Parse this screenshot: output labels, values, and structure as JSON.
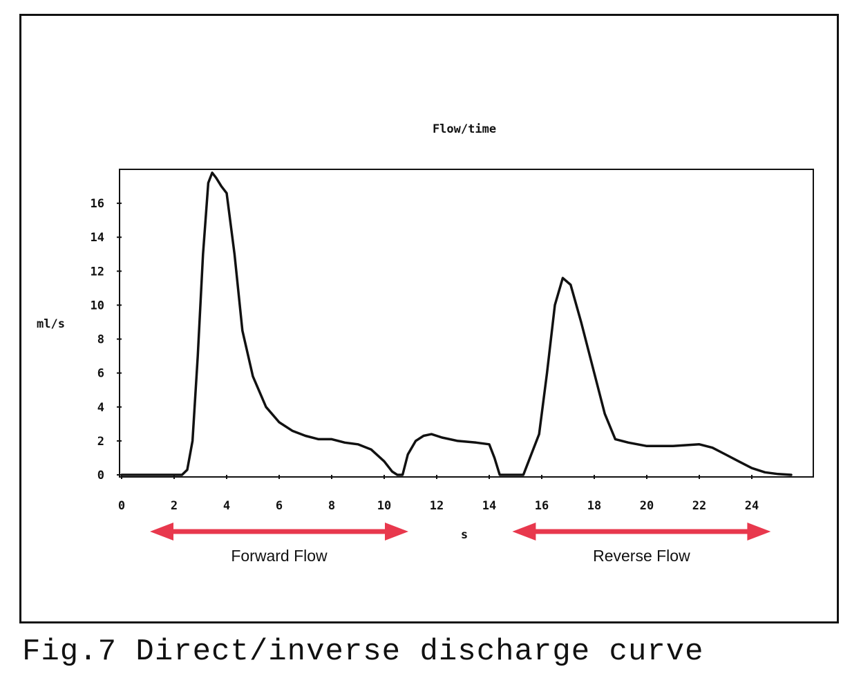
{
  "figure": {
    "caption": "Fig.7 Direct/inverse discharge curve"
  },
  "chart_data": {
    "type": "line",
    "title": "Flow/time",
    "xlabel": "s",
    "ylabel": "ml/s",
    "xlim": [
      0,
      26
    ],
    "ylim": [
      0,
      18
    ],
    "xticks": [
      0,
      2,
      4,
      6,
      8,
      10,
      12,
      14,
      16,
      18,
      20,
      22,
      24
    ],
    "yticks": [
      0,
      2,
      4,
      6,
      8,
      10,
      12,
      14,
      16
    ],
    "grid": false,
    "colors": {
      "line": "#111111",
      "arrow": "#e8384d"
    },
    "series": [
      {
        "x": [
          0,
          1,
          2,
          2.3,
          2.5,
          2.7,
          2.9,
          3.1,
          3.3,
          3.45,
          3.6,
          3.8,
          4.0,
          4.3,
          4.6,
          5.0,
          5.5,
          6.0,
          6.5,
          7.0,
          7.5,
          8.0,
          8.5,
          9.0,
          9.5,
          10.0,
          10.3,
          10.5,
          10.7,
          10.9,
          11.2,
          11.5,
          11.8,
          12.2,
          12.8,
          13.5,
          14.0,
          14.2,
          14.4,
          14.6,
          15.0,
          15.3,
          15.6,
          15.9,
          16.2,
          16.5,
          16.8,
          17.1,
          17.5,
          18.0,
          18.4,
          18.8,
          19.3,
          20.0,
          21.0,
          22.0,
          22.5,
          23.0,
          23.5,
          24.0,
          24.5,
          25.0,
          25.5
        ],
        "y": [
          0,
          0,
          0,
          0,
          0.3,
          2.0,
          7.0,
          13.0,
          17.2,
          17.8,
          17.5,
          17.0,
          16.6,
          13.0,
          8.5,
          5.8,
          4.0,
          3.1,
          2.6,
          2.3,
          2.1,
          2.1,
          1.9,
          1.8,
          1.5,
          0.8,
          0.2,
          0,
          0,
          1.2,
          2.0,
          2.3,
          2.4,
          2.2,
          2.0,
          1.9,
          1.8,
          1.0,
          0,
          0,
          0,
          0,
          1.2,
          2.4,
          6.0,
          10.0,
          11.6,
          11.2,
          9.0,
          6.0,
          3.6,
          2.1,
          1.9,
          1.7,
          1.7,
          1.8,
          1.6,
          1.2,
          0.8,
          0.4,
          0.15,
          0.05,
          0
        ]
      }
    ],
    "annotations": [
      {
        "label": "Forward Flow",
        "x_from": 2,
        "x_to": 10
      },
      {
        "label": "Reverse Flow",
        "x_from": 15.8,
        "x_to": 23.8
      }
    ]
  }
}
